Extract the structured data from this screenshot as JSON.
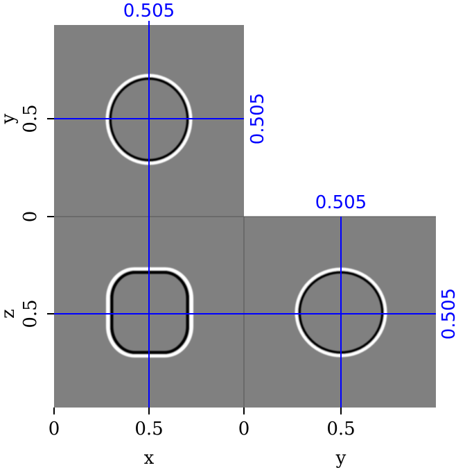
{
  "chart_data": {
    "type": "heatmap",
    "panels": [
      {
        "name": "top",
        "horizontal_axis": "x",
        "vertical_axis": "y",
        "pick": {
          "x": 0.505,
          "y": 0.505
        }
      },
      {
        "name": "front",
        "horizontal_axis": "x",
        "vertical_axis": "z",
        "pick": {
          "x": 0.505,
          "z": 0.505
        }
      },
      {
        "name": "side",
        "horizontal_axis": "y",
        "vertical_axis": "z",
        "pick": {
          "y": 0.505,
          "z": 0.505
        }
      }
    ],
    "pick_labels": {
      "x": "0.505",
      "y_top": "0.505",
      "y_side": "0.505",
      "z": "0.505"
    },
    "xlabel": "x",
    "ylabel_bottom_right": "y",
    "left_labels": {
      "top": "y",
      "bottom": "z"
    },
    "ticks": {
      "x": [
        "0",
        "0.5"
      ],
      "y_bottom": [
        "0",
        "0.5"
      ],
      "left_top": [
        "0.5"
      ],
      "left_zero": "0",
      "left_bottom": [
        "0.5"
      ]
    },
    "colors": {
      "background": "#808080",
      "pick_line": "#0000ff"
    },
    "xlim": [
      0,
      1
    ],
    "ylim": [
      0,
      1
    ],
    "zlim": [
      0,
      1
    ]
  }
}
